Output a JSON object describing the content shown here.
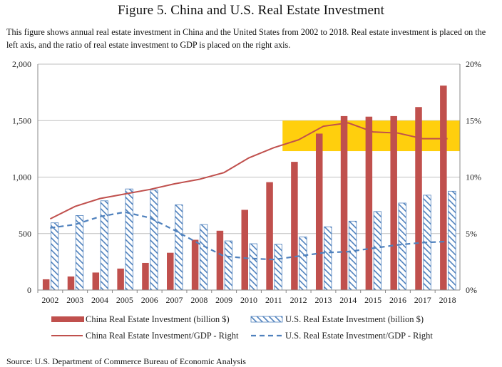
{
  "header": {
    "title": "Figure 5. China and U.S. Real Estate Investment",
    "description": "This figure shows annual real estate investment in China and the United States from 2002 to 2018. Real estate investment is placed on the left axis, and the ratio of real estate investment to GDP is placed on the right axis."
  },
  "footer": {
    "source": "Source: U.S. Department of Commerce Bureau of Economic Analysis"
  },
  "colors": {
    "china": "#c0504d",
    "us": "#4f81bd",
    "highlight": "#ffcc00"
  },
  "chart_data": {
    "type": "bar",
    "categories": [
      "2002",
      "2003",
      "2004",
      "2005",
      "2006",
      "2007",
      "2008",
      "2009",
      "2010",
      "2011",
      "2012",
      "2013",
      "2014",
      "2015",
      "2016",
      "2017",
      "2018"
    ],
    "y_left": {
      "ylim": [
        0,
        2000
      ],
      "ticks": [
        0,
        500,
        1000,
        1500,
        2000
      ],
      "tick_labels": [
        "0",
        "500",
        "1,000",
        "1,500",
        "2,000"
      ]
    },
    "y_right": {
      "ylim": [
        0,
        20
      ],
      "ticks": [
        0,
        5,
        10,
        15,
        20
      ],
      "tick_labels": [
        "0%",
        "5%",
        "10%",
        "15%",
        "20%"
      ]
    },
    "series": [
      {
        "name": "China Real Estate Investment (billion $)",
        "kind": "bar",
        "axis": "left",
        "values": [
          95,
          120,
          155,
          190,
          240,
          330,
          445,
          525,
          710,
          955,
          1135,
          1385,
          1540,
          1535,
          1540,
          1620,
          1810
        ]
      },
      {
        "name": "U.S. Real Estate Investment (billion $)",
        "kind": "bar-hatched",
        "axis": "left",
        "values": [
          595,
          660,
          790,
          895,
          885,
          755,
          580,
          435,
          410,
          405,
          470,
          560,
          610,
          695,
          770,
          840,
          875
        ]
      },
      {
        "name": "China Real Estate Investment/GDP - Right",
        "kind": "line",
        "axis": "right",
        "values": [
          6.3,
          7.4,
          8.1,
          8.5,
          8.9,
          9.4,
          9.8,
          10.4,
          11.7,
          12.6,
          13.3,
          14.5,
          14.8,
          14.0,
          13.9,
          13.4,
          13.4
        ]
      },
      {
        "name": "U.S. Real Estate Investment/GDP - Right",
        "kind": "line-dashed",
        "axis": "right",
        "values": [
          5.5,
          5.8,
          6.5,
          6.9,
          6.4,
          5.3,
          4.1,
          3.0,
          2.8,
          2.7,
          3.0,
          3.3,
          3.4,
          3.7,
          4.0,
          4.2,
          4.3
        ]
      }
    ],
    "highlight_range": {
      "from": "2012",
      "to": "2018",
      "y_left": [
        1230,
        1500
      ]
    },
    "grid": true,
    "legend": "bottom"
  }
}
